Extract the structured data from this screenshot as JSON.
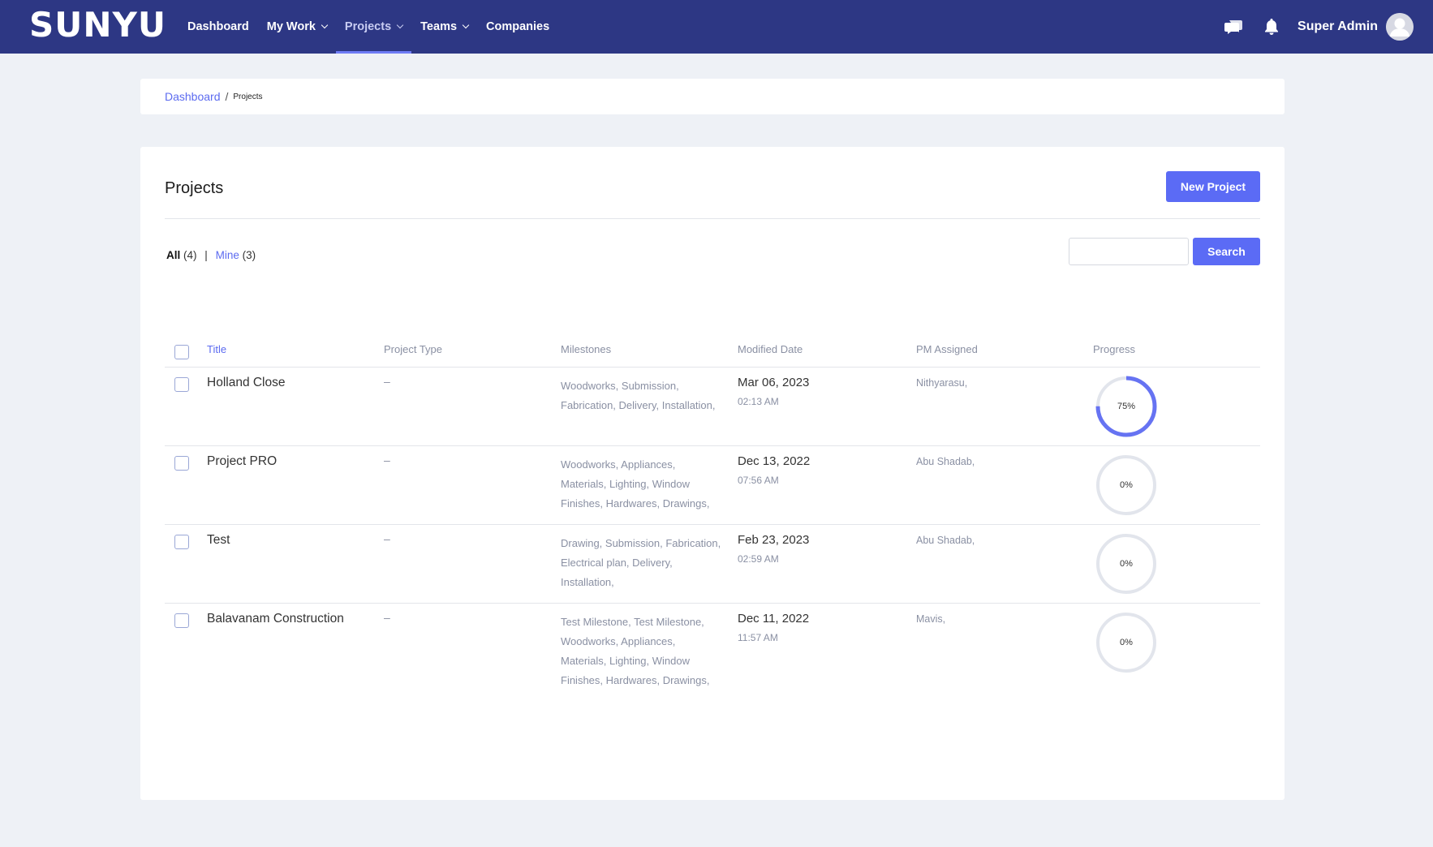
{
  "app": {
    "logo": "SUNYU",
    "nav": [
      {
        "label": "Dashboard",
        "dropdown": false,
        "active": false
      },
      {
        "label": "My Work",
        "dropdown": true,
        "active": false
      },
      {
        "label": "Projects",
        "dropdown": true,
        "active": true
      },
      {
        "label": "Teams",
        "dropdown": true,
        "active": false
      },
      {
        "label": "Companies",
        "dropdown": false,
        "active": false
      }
    ],
    "user_name": "Super Admin",
    "icons": [
      "chat-icon",
      "bell-icon",
      "avatar-icon"
    ]
  },
  "breadcrumb": {
    "root": "Dashboard",
    "separator": "/",
    "current": "Projects"
  },
  "main": {
    "title": "Projects",
    "new_button": "New Project",
    "filters": {
      "all_label": "All",
      "all_count": "(4)",
      "separator": "|",
      "mine_label": "Mine",
      "mine_count": "(3)"
    },
    "search": {
      "value": "",
      "placeholder": "",
      "button": "Search"
    },
    "columns": [
      "Title",
      "Project Type",
      "Milestones",
      "Modified Date",
      "PM Assigned",
      "Progress"
    ],
    "rows": [
      {
        "title": "Holland Close",
        "type": "–",
        "milestones": "Woodworks, Submission, Fabrication, Delivery, Installation,",
        "date": "Mar 06, 2023",
        "time": "02:13 AM",
        "pm": "Nithyarasu,",
        "progress": 75,
        "progress_label": "75%"
      },
      {
        "title": "Project PRO",
        "type": "–",
        "milestones": "Woodworks, Appliances, Materials, Lighting, Window Finishes, Hardwares, Drawings,",
        "date": "Dec 13, 2022",
        "time": "07:56 AM",
        "pm": "Abu Shadab,",
        "progress": 0,
        "progress_label": "0%"
      },
      {
        "title": "Test",
        "type": "–",
        "milestones": "Drawing, Submission, Fabrication, Electrical plan, Delivery, Installation,",
        "date": "Feb 23, 2023",
        "time": "02:59 AM",
        "pm": "Abu Shadab,",
        "progress": 0,
        "progress_label": "0%"
      },
      {
        "title": "Balavanam Construction",
        "type": "–",
        "milestones": "Test Milestone, Test Milestone, Woodworks, Appliances, Materials, Lighting, Window Finishes, Hardwares, Drawings,",
        "date": "Dec 11, 2022",
        "time": "11:57 AM",
        "pm": "Mavis,",
        "progress": 0,
        "progress_label": "0%"
      }
    ]
  },
  "colors": {
    "nav_bg": "#2d3784",
    "accent": "#5b6bf5",
    "progress_track": "#e2e5ec"
  }
}
